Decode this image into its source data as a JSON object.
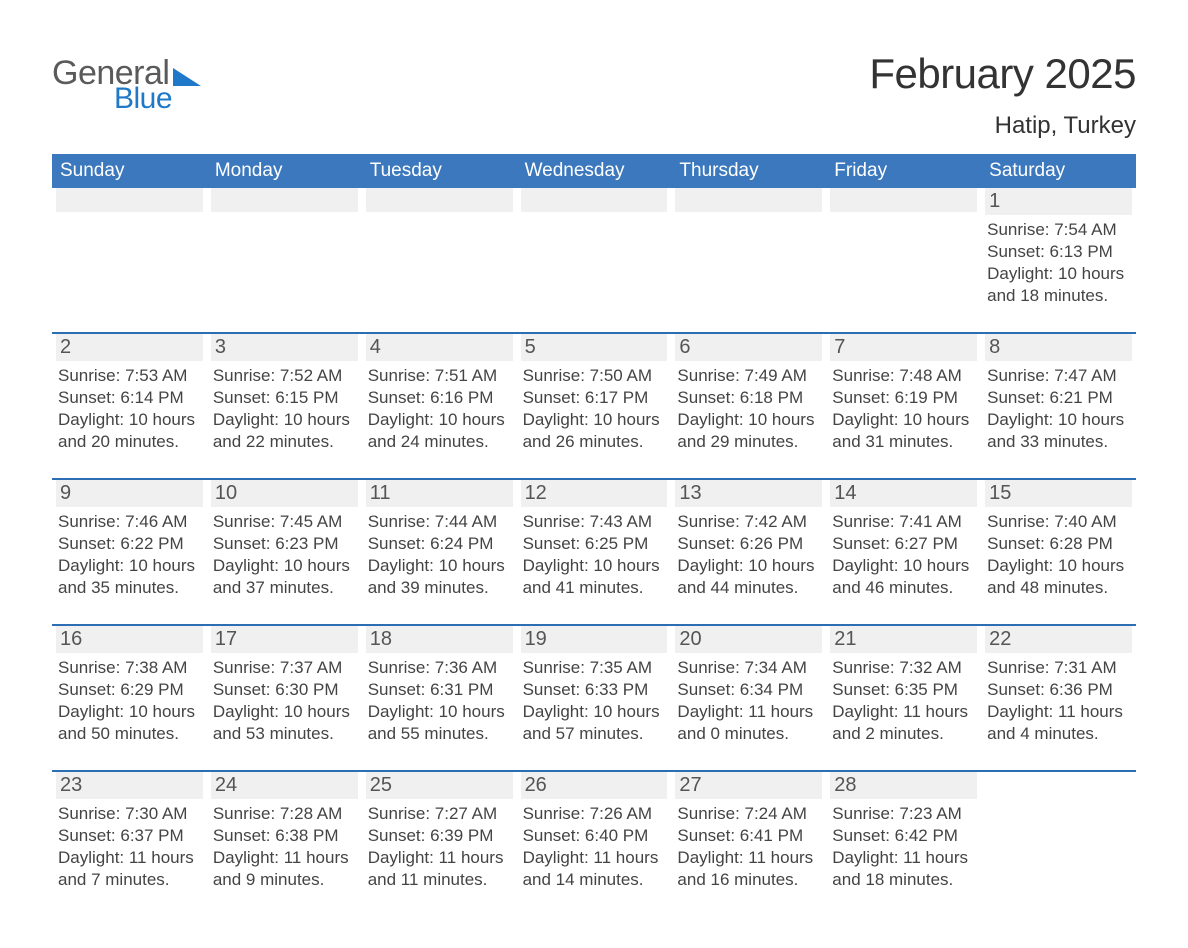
{
  "colors": {
    "header_blue": "#3b78bd",
    "rule_blue": "#2d6db3",
    "daynum_bg": "#f0f0f0",
    "text_gray": "#444444",
    "logo_gray": "#5a5a5a",
    "logo_blue": "#1f78c8",
    "background": "#ffffff"
  },
  "logo": {
    "line1": "General",
    "line2": "Blue"
  },
  "title": "February 2025",
  "location": "Hatip, Turkey",
  "weekdays": [
    "Sunday",
    "Monday",
    "Tuesday",
    "Wednesday",
    "Thursday",
    "Friday",
    "Saturday"
  ],
  "labels": {
    "sunrise": "Sunrise:",
    "sunset": "Sunset:",
    "daylight": "Daylight:"
  },
  "days": [
    {
      "n": 1,
      "sunrise": "7:54 AM",
      "sunset": "6:13 PM",
      "daylight": "10 hours and 18 minutes."
    },
    {
      "n": 2,
      "sunrise": "7:53 AM",
      "sunset": "6:14 PM",
      "daylight": "10 hours and 20 minutes."
    },
    {
      "n": 3,
      "sunrise": "7:52 AM",
      "sunset": "6:15 PM",
      "daylight": "10 hours and 22 minutes."
    },
    {
      "n": 4,
      "sunrise": "7:51 AM",
      "sunset": "6:16 PM",
      "daylight": "10 hours and 24 minutes."
    },
    {
      "n": 5,
      "sunrise": "7:50 AM",
      "sunset": "6:17 PM",
      "daylight": "10 hours and 26 minutes."
    },
    {
      "n": 6,
      "sunrise": "7:49 AM",
      "sunset": "6:18 PM",
      "daylight": "10 hours and 29 minutes."
    },
    {
      "n": 7,
      "sunrise": "7:48 AM",
      "sunset": "6:19 PM",
      "daylight": "10 hours and 31 minutes."
    },
    {
      "n": 8,
      "sunrise": "7:47 AM",
      "sunset": "6:21 PM",
      "daylight": "10 hours and 33 minutes."
    },
    {
      "n": 9,
      "sunrise": "7:46 AM",
      "sunset": "6:22 PM",
      "daylight": "10 hours and 35 minutes."
    },
    {
      "n": 10,
      "sunrise": "7:45 AM",
      "sunset": "6:23 PM",
      "daylight": "10 hours and 37 minutes."
    },
    {
      "n": 11,
      "sunrise": "7:44 AM",
      "sunset": "6:24 PM",
      "daylight": "10 hours and 39 minutes."
    },
    {
      "n": 12,
      "sunrise": "7:43 AM",
      "sunset": "6:25 PM",
      "daylight": "10 hours and 41 minutes."
    },
    {
      "n": 13,
      "sunrise": "7:42 AM",
      "sunset": "6:26 PM",
      "daylight": "10 hours and 44 minutes."
    },
    {
      "n": 14,
      "sunrise": "7:41 AM",
      "sunset": "6:27 PM",
      "daylight": "10 hours and 46 minutes."
    },
    {
      "n": 15,
      "sunrise": "7:40 AM",
      "sunset": "6:28 PM",
      "daylight": "10 hours and 48 minutes."
    },
    {
      "n": 16,
      "sunrise": "7:38 AM",
      "sunset": "6:29 PM",
      "daylight": "10 hours and 50 minutes."
    },
    {
      "n": 17,
      "sunrise": "7:37 AM",
      "sunset": "6:30 PM",
      "daylight": "10 hours and 53 minutes."
    },
    {
      "n": 18,
      "sunrise": "7:36 AM",
      "sunset": "6:31 PM",
      "daylight": "10 hours and 55 minutes."
    },
    {
      "n": 19,
      "sunrise": "7:35 AM",
      "sunset": "6:33 PM",
      "daylight": "10 hours and 57 minutes."
    },
    {
      "n": 20,
      "sunrise": "7:34 AM",
      "sunset": "6:34 PM",
      "daylight": "11 hours and 0 minutes."
    },
    {
      "n": 21,
      "sunrise": "7:32 AM",
      "sunset": "6:35 PM",
      "daylight": "11 hours and 2 minutes."
    },
    {
      "n": 22,
      "sunrise": "7:31 AM",
      "sunset": "6:36 PM",
      "daylight": "11 hours and 4 minutes."
    },
    {
      "n": 23,
      "sunrise": "7:30 AM",
      "sunset": "6:37 PM",
      "daylight": "11 hours and 7 minutes."
    },
    {
      "n": 24,
      "sunrise": "7:28 AM",
      "sunset": "6:38 PM",
      "daylight": "11 hours and 9 minutes."
    },
    {
      "n": 25,
      "sunrise": "7:27 AM",
      "sunset": "6:39 PM",
      "daylight": "11 hours and 11 minutes."
    },
    {
      "n": 26,
      "sunrise": "7:26 AM",
      "sunset": "6:40 PM",
      "daylight": "11 hours and 14 minutes."
    },
    {
      "n": 27,
      "sunrise": "7:24 AM",
      "sunset": "6:41 PM",
      "daylight": "11 hours and 16 minutes."
    },
    {
      "n": 28,
      "sunrise": "7:23 AM",
      "sunset": "6:42 PM",
      "daylight": "11 hours and 18 minutes."
    }
  ],
  "layout": {
    "first_weekday_index": 6,
    "columns": 7,
    "rows": 5
  }
}
